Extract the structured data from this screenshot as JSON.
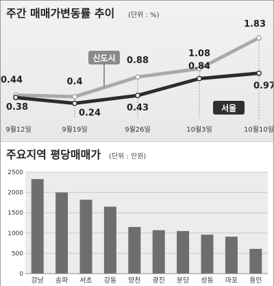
{
  "colors": {
    "new_town": "#a9a9a9",
    "seoul": "#2b2b2b",
    "bar": "#6e6e6e",
    "panel_bg": "#eeeeee",
    "badge_new_town": "#8a8a8a",
    "badge_seoul": "#2f2f2f"
  },
  "chart_data": [
    {
      "type": "line",
      "title": "주간 매매가변동률 추이",
      "unit_label": "(단위 : %)",
      "categories": [
        "9월12일",
        "9월19일",
        "9월26일",
        "10월3일",
        "10월10일"
      ],
      "series": [
        {
          "name": "신도시",
          "values": [
            0.44,
            0.4,
            0.88,
            1.08,
            1.83
          ]
        },
        {
          "name": "서울",
          "values": [
            0.38,
            0.24,
            0.43,
            0.84,
            0.97
          ]
        }
      ],
      "value_labels": {
        "신도시": [
          "0.44",
          "0.4",
          "0.88",
          "1.08",
          "1.83"
        ],
        "서울": [
          "0.38",
          "0.24",
          "0.43",
          "0.84",
          "0.97"
        ]
      },
      "ylim": [
        0.0,
        2.0
      ],
      "grid": false,
      "legend": "inline"
    },
    {
      "type": "bar",
      "title": "주요지역 평당매매가",
      "unit_label": "(단위 : 만원)",
      "categories": [
        "강남",
        "송파",
        "서초",
        "강동",
        "양천",
        "광진",
        "분당",
        "성동",
        "마포",
        "용인"
      ],
      "values": [
        2330,
        2000,
        1820,
        1650,
        1150,
        1070,
        1050,
        960,
        910,
        610
      ],
      "yticks": [
        "0",
        "500",
        "1000",
        "1500",
        "2000",
        "2500"
      ],
      "ylim": [
        0,
        2500
      ],
      "grid": true
    }
  ]
}
